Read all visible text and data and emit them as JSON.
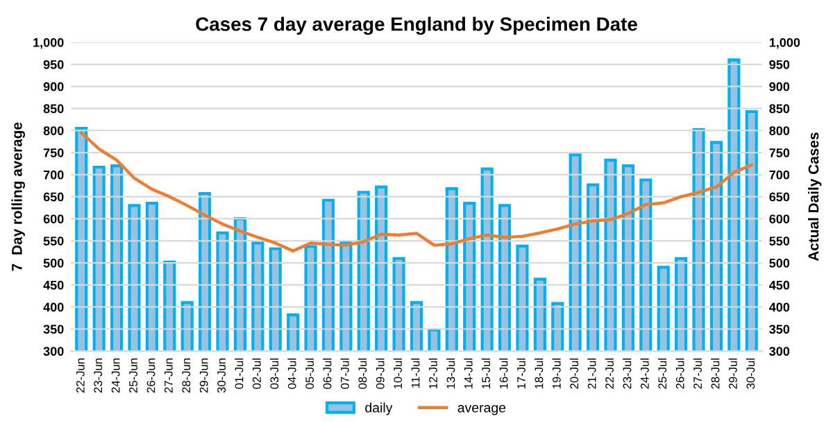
{
  "chart_data": {
    "type": "bar",
    "title": "Cases 7 day average England by Specimen Date",
    "ylabel": "7  Day rolling average",
    "y2label": "Actual Daily Cases",
    "categories": [
      "22-Jun",
      "23-Jun",
      "24-Jun",
      "25-Jun",
      "26-Jun",
      "27-Jun",
      "28-Jun",
      "29-Jun",
      "30-Jun",
      "01-Jul",
      "02-Jul",
      "03-Jul",
      "04-Jul",
      "05-Jul",
      "06-Jul",
      "07-Jul",
      "08-Jul",
      "09-Jul",
      "10-Jul",
      "11-Jul",
      "12-Jul",
      "13-Jul",
      "14-Jul",
      "15-Jul",
      "16-Jul",
      "17-Jul",
      "18-Jul",
      "19-Jul",
      "20-Jul",
      "21-Jul",
      "22-Jul",
      "23-Jul",
      "24-Jul",
      "25-Jul",
      "26-Jul",
      "27-Jul",
      "28-Jul",
      "29-Jul",
      "30-Jul"
    ],
    "series": [
      {
        "name": "daily",
        "axis": "y2",
        "color": "#00b0f0",
        "values": [
          805,
          717,
          720,
          630,
          635,
          502,
          410,
          657,
          568,
          600,
          545,
          532,
          382,
          537,
          642,
          547,
          660,
          672,
          510,
          410,
          348,
          668,
          635,
          713,
          630,
          538,
          463,
          408,
          745,
          677,
          733,
          720,
          688,
          490,
          510,
          802,
          773,
          960,
          843
        ]
      },
      {
        "name": "average",
        "type": "line",
        "axis": "y",
        "color": "#ed7d31",
        "values": [
          795,
          758,
          733,
          692,
          667,
          650,
          630,
          608,
          588,
          572,
          558,
          545,
          527,
          545,
          542,
          540,
          548,
          565,
          563,
          567,
          540,
          543,
          555,
          563,
          558,
          560,
          568,
          577,
          588,
          595,
          598,
          612,
          632,
          636,
          650,
          660,
          672,
          705,
          722
        ]
      }
    ],
    "ylim": [
      300,
      1000
    ],
    "yticks": [
      300,
      350,
      400,
      450,
      500,
      550,
      600,
      650,
      700,
      750,
      800,
      850,
      900,
      950,
      {
        "value": 1000,
        "label": "1,000"
      }
    ],
    "y2lim": [
      300,
      1000
    ],
    "y2ticks": [
      300,
      350,
      400,
      450,
      500,
      550,
      600,
      650,
      700,
      750,
      800,
      850,
      900,
      950,
      {
        "value": 1000,
        "label": "1,000"
      }
    ],
    "grid": "y",
    "legend": "bottom",
    "marker": "none",
    "line_style": "solid"
  }
}
